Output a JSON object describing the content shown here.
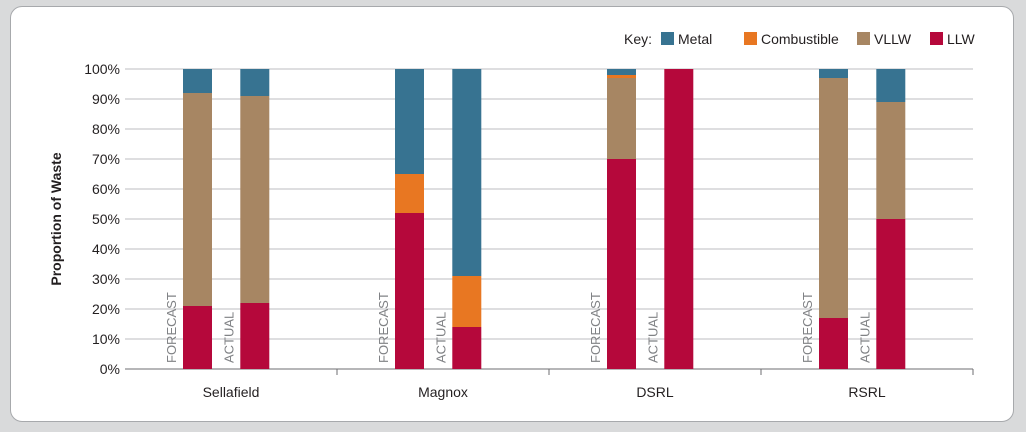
{
  "chart_data": {
    "type": "bar",
    "stacked": true,
    "ylabel": "Proportion of Waste",
    "ylim": [
      0,
      100
    ],
    "y_ticks": [
      "0%",
      "10%",
      "20%",
      "30%",
      "40%",
      "50%",
      "60%",
      "70%",
      "80%",
      "90%",
      "100%"
    ],
    "grid": true,
    "legend": {
      "title": "Key:",
      "position": "top-right",
      "entries": [
        "Metal",
        "Combustible",
        "VLLW",
        "LLW"
      ]
    },
    "bar_labels": [
      "FORECAST",
      "ACTUAL"
    ],
    "categories": [
      "Sellafield",
      "Magnox",
      "DSRL",
      "RSRL"
    ],
    "series": [
      {
        "name": "LLW",
        "color": "#b5083b",
        "forecast": [
          21,
          52,
          70,
          17
        ],
        "actual": [
          22,
          14,
          100,
          50
        ]
      },
      {
        "name": "VLLW",
        "color": "#a78663",
        "forecast": [
          71,
          0,
          27,
          80
        ],
        "actual": [
          69,
          0,
          0,
          39
        ]
      },
      {
        "name": "Combustible",
        "color": "#e87722",
        "forecast": [
          0,
          13,
          1,
          0
        ],
        "actual": [
          0,
          17,
          0,
          0
        ]
      },
      {
        "name": "Metal",
        "color": "#377391",
        "forecast": [
          8,
          35,
          2,
          3
        ],
        "actual": [
          9,
          69,
          0,
          11
        ]
      }
    ]
  }
}
